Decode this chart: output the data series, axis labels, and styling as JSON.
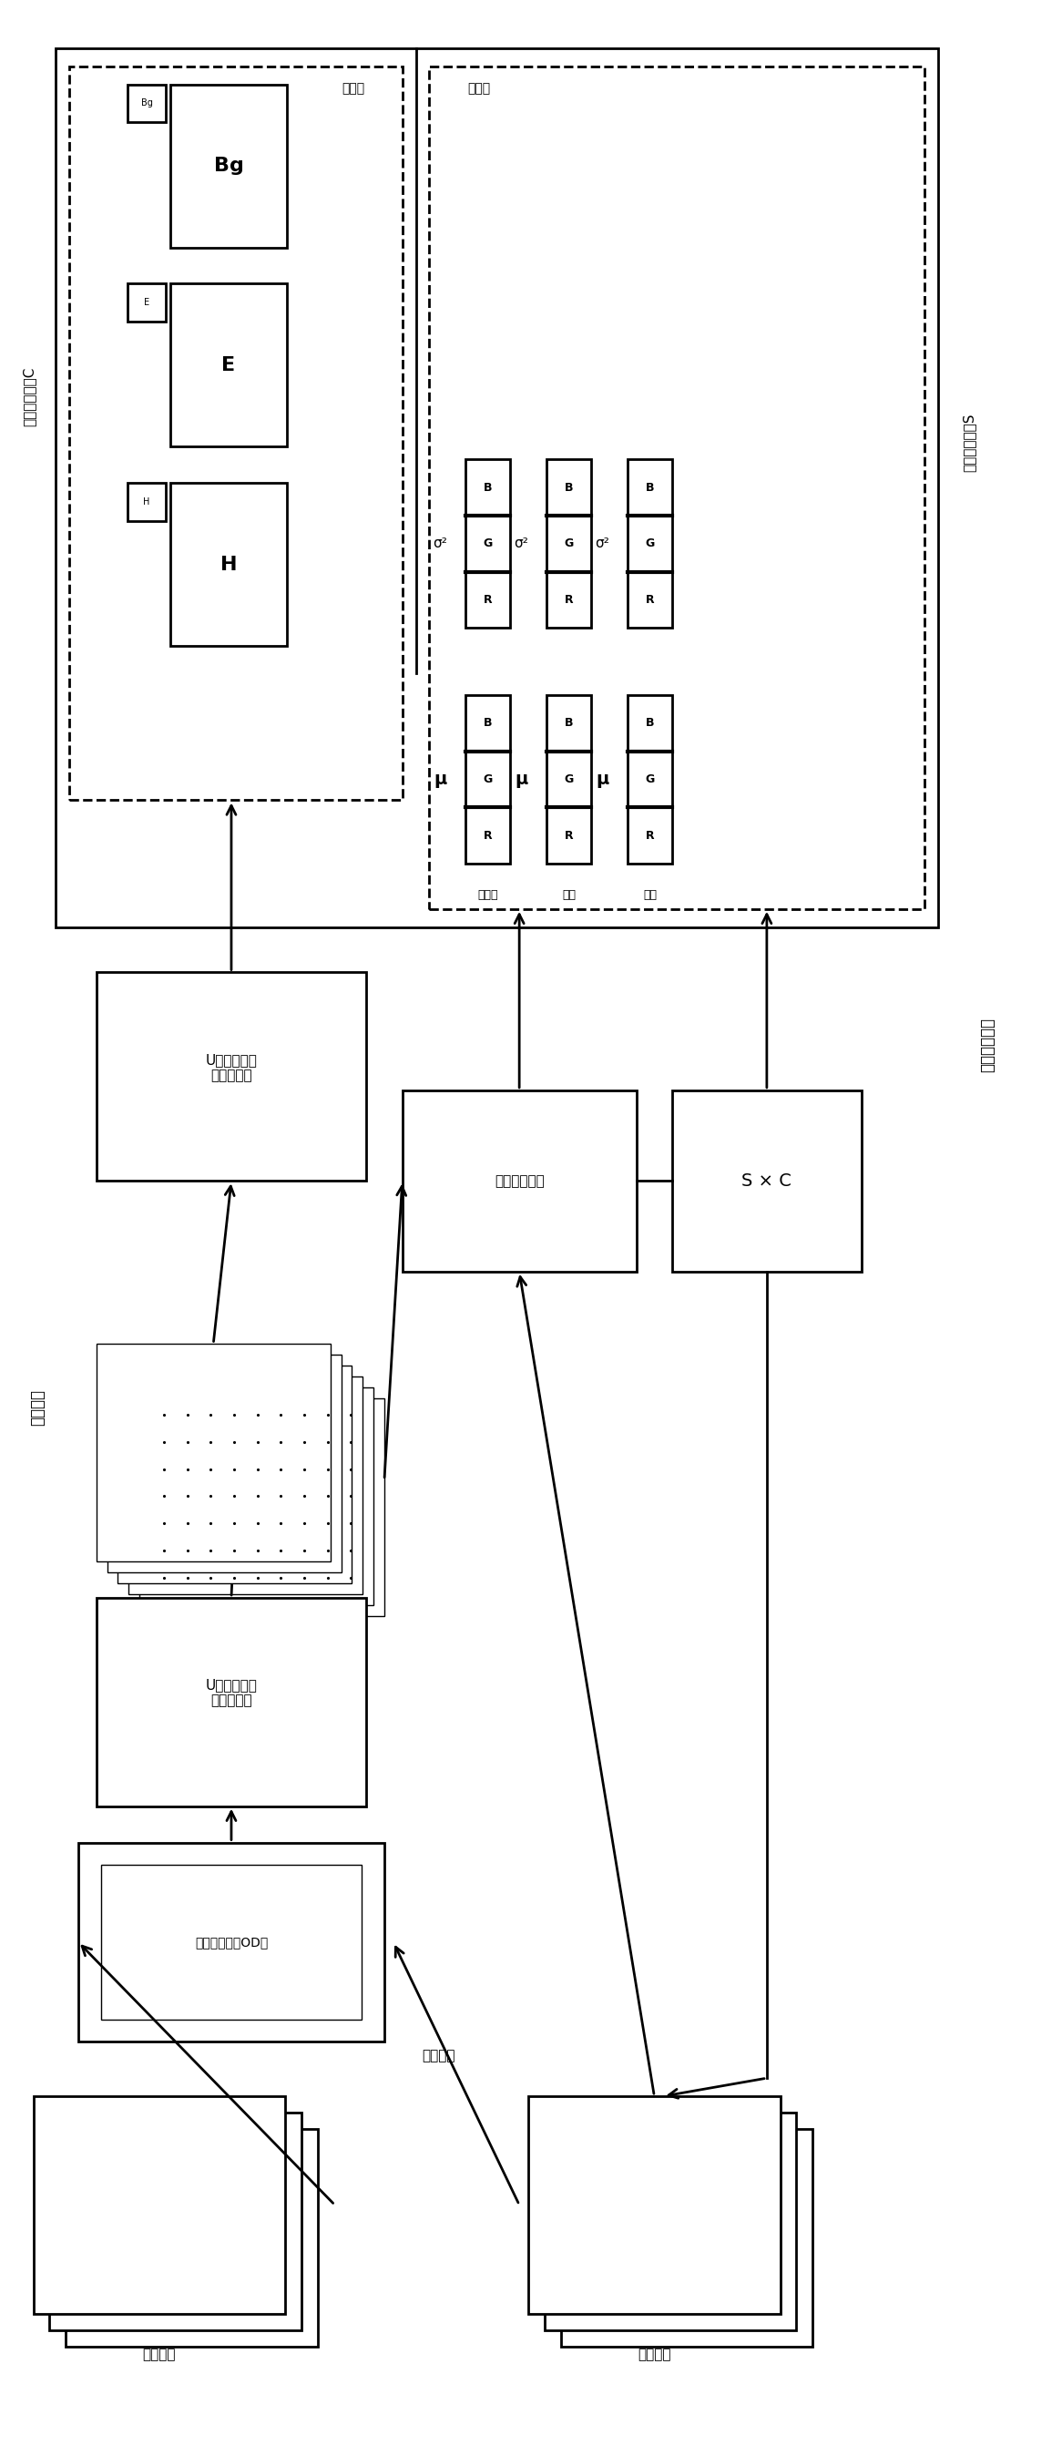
{
  "bg_color": "#ffffff",
  "fig_width": 11.66,
  "fig_height": 26.96,
  "label_dye_intensity": "染色强度矩阵C",
  "label_dye_color": "染色颜色矩阵S",
  "label_feature_vector": "特征向量",
  "label_prior_linear": "先验线性模型",
  "label_pixel_level": "像素级",
  "label_image_level": "图像级",
  "label_hematoxylin": "苏木精",
  "label_eosin": "伊红",
  "label_background": "背景",
  "label_tissue_image": "组织图像",
  "label_od_image": "光密度图像（OD）",
  "label_reconstruct_loss": "重建损失",
  "label_reconstruct_image": "重建图像",
  "label_u_encoder": "U型卷积神经\n网络编码器",
  "label_u_decoder": "U型卷积神经\n网络解码器",
  "label_prior_network": "先验神经网络",
  "label_SxC": "S × C",
  "label_mu": "μ",
  "label_sigma2": "σ²",
  "label_Bg": "Bg",
  "label_E": "E",
  "label_H": "H"
}
